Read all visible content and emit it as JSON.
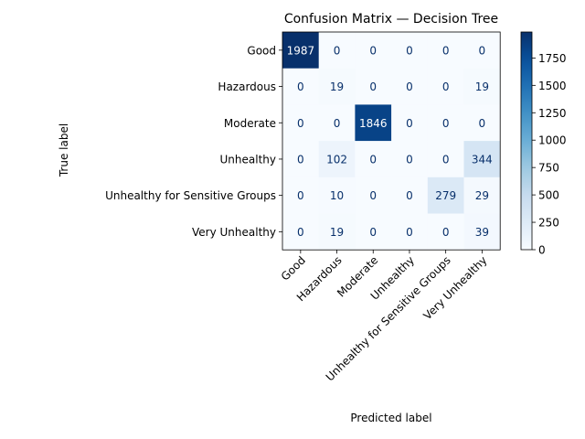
{
  "chart_data": {
    "type": "heatmap",
    "title": "Confusion Matrix — Decision Tree",
    "xlabel": "Predicted label",
    "ylabel": "True label",
    "row_labels": [
      "Good",
      "Hazardous",
      "Moderate",
      "Unhealthy",
      "Unhealthy for Sensitive Groups",
      "Very Unhealthy"
    ],
    "col_labels": [
      "Good",
      "Hazardous",
      "Moderate",
      "Unhealthy",
      "Unhealthy for Sensitive Groups",
      "Very Unhealthy"
    ],
    "values": [
      [
        1987,
        0,
        0,
        0,
        0,
        0
      ],
      [
        0,
        19,
        0,
        0,
        0,
        19
      ],
      [
        0,
        0,
        1846,
        0,
        0,
        0
      ],
      [
        0,
        102,
        0,
        0,
        0,
        344
      ],
      [
        0,
        10,
        0,
        0,
        279,
        29
      ],
      [
        0,
        19,
        0,
        0,
        0,
        39
      ]
    ],
    "colormap": "Blues",
    "colorbar": {
      "range": [
        0,
        1987
      ],
      "ticks": [
        0,
        250,
        500,
        750,
        1000,
        1250,
        1500,
        1750
      ]
    }
  }
}
